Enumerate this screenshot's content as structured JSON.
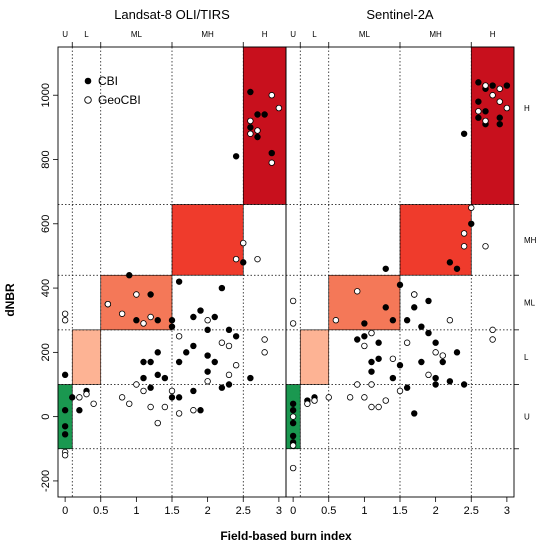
{
  "chart_data": {
    "type": "scatter",
    "xlabel": "Field-based burn index",
    "ylabel": "dNBR",
    "x_ticks": [
      "0",
      "0.5",
      "1",
      "1.5",
      "2",
      "2.5",
      "3"
    ],
    "y_ticks": [
      "-200",
      "0",
      "200",
      "400",
      "600",
      "800",
      "1000"
    ],
    "xlim": [
      -0.1,
      3.1
    ],
    "ylim": [
      -250,
      1150
    ],
    "grid": "dotted class thresholds",
    "legend": {
      "position": "top-left",
      "entries": [
        "CBI",
        "GeoCBI"
      ]
    },
    "burn_classes_field": {
      "labels": [
        "U",
        "L",
        "ML",
        "MH",
        "H"
      ],
      "breaks": [
        -0.1,
        0.1,
        0.5,
        1.5,
        2.5,
        3.1
      ]
    },
    "burn_classes_dnbr": {
      "labels": [
        "U",
        "L",
        "ML",
        "MH",
        "H"
      ],
      "breaks": [
        -100,
        100,
        270,
        440,
        660,
        1300
      ]
    },
    "class_colors": [
      "#1a9850",
      "#fdb394",
      "#f47858",
      "#ef3b2c",
      "#c8101d"
    ],
    "panels": [
      {
        "title": "Landsat-8 OLI/TIRS",
        "series": [
          {
            "name": "CBI",
            "marker": "filled",
            "points": [
              [
                0,
                130
              ],
              [
                0,
                20
              ],
              [
                0,
                -30
              ],
              [
                0,
                -55
              ],
              [
                0.1,
                60
              ],
              [
                0.2,
                20
              ],
              [
                0.3,
                80
              ],
              [
                0.6,
                350
              ],
              [
                0.9,
                440
              ],
              [
                1.0,
                300
              ],
              [
                1.1,
                120
              ],
              [
                1.1,
                170
              ],
              [
                1.2,
                170
              ],
              [
                1.3,
                130
              ],
              [
                1.3,
                200
              ],
              [
                1.2,
                380
              ],
              [
                1.3,
                300
              ],
              [
                1.5,
                300
              ],
              [
                1.5,
                280
              ],
              [
                1.6,
                420
              ],
              [
                1.6,
                170
              ],
              [
                1.7,
                200
              ],
              [
                1.8,
                220
              ],
              [
                1.8,
                310
              ],
              [
                1.9,
                330
              ],
              [
                2.0,
                140
              ],
              [
                2.0,
                190
              ],
              [
                2.1,
                310
              ],
              [
                2.2,
                400
              ],
              [
                2.1,
                170
              ],
              [
                2.3,
                100
              ],
              [
                2.3,
                270
              ],
              [
                2.4,
                250
              ],
              [
                2.5,
                480
              ],
              [
                2.4,
                810
              ],
              [
                2.6,
                1010
              ],
              [
                2.7,
                940
              ],
              [
                2.7,
                870
              ],
              [
                2.8,
                940
              ],
              [
                2.9,
                820
              ],
              [
                1.9,
                20
              ],
              [
                2.6,
                120
              ],
              [
                1.4,
                120
              ],
              [
                1.6,
                60
              ],
              [
                1.8,
                80
              ],
              [
                2.2,
                90
              ],
              [
                2.0,
                270
              ],
              [
                1.5,
                60
              ],
              [
                1.2,
                90
              ],
              [
                2.6,
                900
              ]
            ]
          },
          {
            "name": "GeoCBI",
            "marker": "open",
            "points": [
              [
                0,
                320
              ],
              [
                0,
                300
              ],
              [
                0,
                -110
              ],
              [
                0,
                -120
              ],
              [
                0.2,
                60
              ],
              [
                0.3,
                70
              ],
              [
                0.6,
                350
              ],
              [
                0.8,
                320
              ],
              [
                1.1,
                290
              ],
              [
                1.0,
                380
              ],
              [
                1.2,
                310
              ],
              [
                0.8,
                60
              ],
              [
                1.0,
                100
              ],
              [
                1.1,
                80
              ],
              [
                1.2,
                30
              ],
              [
                1.3,
                -20
              ],
              [
                1.4,
                30
              ],
              [
                1.5,
                80
              ],
              [
                1.6,
                10
              ],
              [
                1.8,
                20
              ],
              [
                2.2,
                230
              ],
              [
                2.3,
                220
              ],
              [
                2.5,
                540
              ],
              [
                2.4,
                490
              ],
              [
                2.7,
                490
              ],
              [
                2.8,
                200
              ],
              [
                2.8,
                240
              ],
              [
                2.6,
                920
              ],
              [
                2.7,
                890
              ],
              [
                2.9,
                1000
              ],
              [
                2.9,
                790
              ],
              [
                3.0,
                960
              ],
              [
                2.6,
                880
              ],
              [
                2.0,
                110
              ],
              [
                1.6,
                250
              ],
              [
                0.9,
                40
              ],
              [
                0.4,
                40
              ],
              [
                2.0,
                300
              ],
              [
                2.4,
                160
              ],
              [
                2.3,
                130
              ]
            ]
          }
        ]
      },
      {
        "title": "Sentinel-2A",
        "series": [
          {
            "name": "CBI",
            "marker": "filled",
            "points": [
              [
                0,
                20
              ],
              [
                0,
                -20
              ],
              [
                0,
                -60
              ],
              [
                0,
                -80
              ],
              [
                0,
                40
              ],
              [
                0.2,
                50
              ],
              [
                0.3,
                60
              ],
              [
                1.0,
                250
              ],
              [
                1.0,
                290
              ],
              [
                1.1,
                170
              ],
              [
                1.2,
                230
              ],
              [
                1.3,
                340
              ],
              [
                1.3,
                460
              ],
              [
                1.4,
                300
              ],
              [
                1.5,
                410
              ],
              [
                1.6,
                300
              ],
              [
                1.7,
                340
              ],
              [
                1.7,
                380
              ],
              [
                1.8,
                170
              ],
              [
                1.9,
                360
              ],
              [
                2.0,
                230
              ],
              [
                2.0,
                100
              ],
              [
                2.1,
                170
              ],
              [
                2.2,
                110
              ],
              [
                2.3,
                200
              ],
              [
                2.2,
                480
              ],
              [
                2.3,
                460
              ],
              [
                2.5,
                600
              ],
              [
                2.4,
                880
              ],
              [
                2.6,
                980
              ],
              [
                2.7,
                950
              ],
              [
                2.8,
                1030
              ],
              [
                2.9,
                930
              ],
              [
                2.7,
                910
              ],
              [
                3.0,
                1030
              ],
              [
                2.7,
                1020
              ],
              [
                2.6,
                1040
              ],
              [
                2.0,
                120
              ],
              [
                1.6,
                90
              ],
              [
                1.5,
                160
              ],
              [
                1.1,
                140
              ],
              [
                1.4,
                120
              ],
              [
                2.4,
                100
              ],
              [
                1.8,
                280
              ],
              [
                1.2,
                180
              ],
              [
                1.7,
                10
              ],
              [
                1.9,
                260
              ],
              [
                2.9,
                910
              ],
              [
                2.6,
                930
              ],
              [
                0.9,
                240
              ]
            ]
          },
          {
            "name": "GeoCBI",
            "marker": "open",
            "points": [
              [
                0,
                360
              ],
              [
                0,
                290
              ],
              [
                0,
                -160
              ],
              [
                0,
                -90
              ],
              [
                0,
                0
              ],
              [
                0.2,
                40
              ],
              [
                0.3,
                50
              ],
              [
                0.6,
                300
              ],
              [
                0.9,
                390
              ],
              [
                1.0,
                220
              ],
              [
                1.1,
                260
              ],
              [
                0.8,
                60
              ],
              [
                0.9,
                100
              ],
              [
                1.0,
                60
              ],
              [
                1.1,
                30
              ],
              [
                1.2,
                30
              ],
              [
                1.3,
                50
              ],
              [
                1.4,
                180
              ],
              [
                1.5,
                80
              ],
              [
                1.7,
                380
              ],
              [
                1.9,
                130
              ],
              [
                2.1,
                190
              ],
              [
                2.2,
                300
              ],
              [
                2.4,
                570
              ],
              [
                2.5,
                650
              ],
              [
                2.4,
                530
              ],
              [
                2.7,
                530
              ],
              [
                2.8,
                240
              ],
              [
                2.8,
                270
              ],
              [
                2.6,
                950
              ],
              [
                2.7,
                920
              ],
              [
                2.9,
                980
              ],
              [
                2.9,
                1020
              ],
              [
                3.0,
                960
              ],
              [
                2.8,
                1000
              ],
              [
                1.1,
                100
              ],
              [
                0.5,
                60
              ],
              [
                2.0,
                200
              ],
              [
                1.6,
                230
              ],
              [
                2.7,
                1030
              ]
            ]
          }
        ]
      }
    ]
  }
}
